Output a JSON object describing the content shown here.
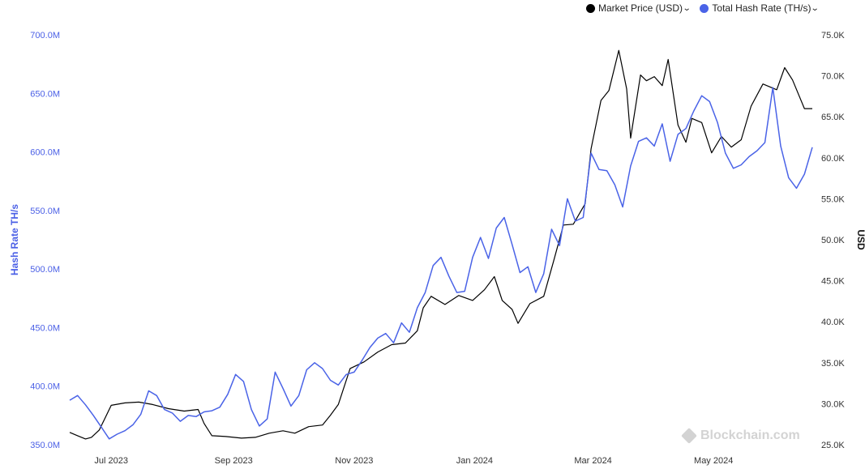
{
  "legend": [
    {
      "label": "Market Price (USD)",
      "color": "#000000"
    },
    {
      "label": "Total Hash Rate (TH/s)",
      "color": "#4a63e7"
    }
  ],
  "watermark": "Blockchain.com",
  "chart_data": {
    "type": "line",
    "title": "",
    "ylabel_left": "Hash Rate TH/s",
    "ylabel_right": "USD",
    "grid": false,
    "legend_position": "top-right",
    "left_axis": {
      "ticks": [
        "350.0M",
        "400.0M",
        "450.0M",
        "500.0M",
        "550.0M",
        "600.0M",
        "650.0M",
        "700.0M"
      ],
      "range": [
        350,
        700
      ],
      "unit": "M TH/s"
    },
    "right_axis": {
      "ticks": [
        "25.0K",
        "30.0K",
        "35.0K",
        "40.0K",
        "45.0K",
        "50.0K",
        "55.0K",
        "60.0K",
        "65.0K",
        "70.0K",
        "75.0K"
      ],
      "range": [
        25,
        75
      ],
      "unit": "K USD"
    },
    "x_axis": {
      "ticks": [
        "Jul 2023",
        "Sep 2023",
        "Nov 2023",
        "Jan 2024",
        "Mar 2024",
        "May 2024"
      ],
      "range": [
        "2023-06-10",
        "2024-06-20"
      ]
    },
    "series": [
      {
        "name": "Market Price (USD)",
        "axis": "right",
        "color": "#000000",
        "x": [
          "2023-06-10",
          "2023-06-14",
          "2023-06-18",
          "2023-06-21",
          "2023-06-25",
          "2023-07-01",
          "2023-07-08",
          "2023-07-15",
          "2023-07-22",
          "2023-07-30",
          "2023-08-07",
          "2023-08-14",
          "2023-08-17",
          "2023-08-21",
          "2023-08-28",
          "2023-09-05",
          "2023-09-12",
          "2023-09-19",
          "2023-09-26",
          "2023-10-02",
          "2023-10-09",
          "2023-10-16",
          "2023-10-20",
          "2023-10-24",
          "2023-10-30",
          "2023-11-06",
          "2023-11-13",
          "2023-11-20",
          "2023-11-27",
          "2023-12-03",
          "2023-12-06",
          "2023-12-10",
          "2023-12-17",
          "2023-12-24",
          "2023-12-31",
          "2024-01-06",
          "2024-01-11",
          "2024-01-15",
          "2024-01-20",
          "2024-01-23",
          "2024-01-29",
          "2024-02-05",
          "2024-02-10",
          "2024-02-15",
          "2024-02-20",
          "2024-02-26",
          "2024-02-29",
          "2024-03-05",
          "2024-03-09",
          "2024-03-14",
          "2024-03-18",
          "2024-03-20",
          "2024-03-25",
          "2024-03-28",
          "2024-04-01",
          "2024-04-05",
          "2024-04-08",
          "2024-04-13",
          "2024-04-17",
          "2024-04-20",
          "2024-04-25",
          "2024-04-30",
          "2024-05-05",
          "2024-05-10",
          "2024-05-15",
          "2024-05-20",
          "2024-05-26",
          "2024-06-02",
          "2024-06-06",
          "2024-06-10",
          "2024-06-16",
          "2024-06-20"
        ],
        "values": [
          26.5,
          26.1,
          25.7,
          25.9,
          26.8,
          29.8,
          30.1,
          30.2,
          29.9,
          29.4,
          29.1,
          29.3,
          27.6,
          26.1,
          26.0,
          25.8,
          25.9,
          26.4,
          26.7,
          26.4,
          27.2,
          27.4,
          28.6,
          29.9,
          34.3,
          35.1,
          36.3,
          37.2,
          37.4,
          38.9,
          41.7,
          43.1,
          42.1,
          43.2,
          42.6,
          43.9,
          45.5,
          42.6,
          41.5,
          39.8,
          42.2,
          43.1,
          47.4,
          51.8,
          51.9,
          54.4,
          61.1,
          67.0,
          68.2,
          73.1,
          68.4,
          62.4,
          70.1,
          69.4,
          69.9,
          68.8,
          72.0,
          64.0,
          61.9,
          64.8,
          64.3,
          60.6,
          62.6,
          61.3,
          62.2,
          66.3,
          69.0,
          68.3,
          71.0,
          69.5,
          66.0,
          66.0
        ],
        "note_values": "K USD"
      },
      {
        "name": "Total Hash Rate (TH/s)",
        "axis": "left",
        "color": "#4a63e7",
        "x": [
          "2023-06-10",
          "2023-06-14",
          "2023-06-18",
          "2023-06-22",
          "2023-06-26",
          "2023-06-30",
          "2023-07-04",
          "2023-07-08",
          "2023-07-12",
          "2023-07-16",
          "2023-07-20",
          "2023-07-24",
          "2023-07-28",
          "2023-08-01",
          "2023-08-05",
          "2023-08-09",
          "2023-08-13",
          "2023-08-17",
          "2023-08-21",
          "2023-08-25",
          "2023-08-29",
          "2023-09-02",
          "2023-09-06",
          "2023-09-10",
          "2023-09-14",
          "2023-09-18",
          "2023-09-22",
          "2023-09-26",
          "2023-09-30",
          "2023-10-04",
          "2023-10-08",
          "2023-10-12",
          "2023-10-16",
          "2023-10-20",
          "2023-10-24",
          "2023-10-28",
          "2023-11-01",
          "2023-11-05",
          "2023-11-09",
          "2023-11-13",
          "2023-11-17",
          "2023-11-21",
          "2023-11-25",
          "2023-11-29",
          "2023-12-03",
          "2023-12-07",
          "2023-12-11",
          "2023-12-15",
          "2023-12-19",
          "2023-12-23",
          "2023-12-27",
          "2023-12-31",
          "2024-01-04",
          "2024-01-08",
          "2024-01-12",
          "2024-01-16",
          "2024-01-20",
          "2024-01-24",
          "2024-01-28",
          "2024-02-01",
          "2024-02-05",
          "2024-02-09",
          "2024-02-13",
          "2024-02-17",
          "2024-02-21",
          "2024-02-25",
          "2024-02-29",
          "2024-03-04",
          "2024-03-08",
          "2024-03-12",
          "2024-03-16",
          "2024-03-20",
          "2024-03-24",
          "2024-03-28",
          "2024-04-01",
          "2024-04-05",
          "2024-04-09",
          "2024-04-13",
          "2024-04-17",
          "2024-04-21",
          "2024-04-25",
          "2024-04-29",
          "2024-05-03",
          "2024-05-07",
          "2024-05-11",
          "2024-05-15",
          "2024-05-19",
          "2024-05-23",
          "2024-05-27",
          "2024-05-31",
          "2024-06-04",
          "2024-06-08",
          "2024-06-12",
          "2024-06-16",
          "2024-06-20"
        ],
        "values": [
          388,
          392,
          384,
          375,
          365,
          355,
          359,
          362,
          367,
          376,
          396,
          392,
          380,
          377,
          370,
          375,
          374,
          378,
          379,
          382,
          393,
          410,
          404,
          380,
          366,
          372,
          412,
          398,
          383,
          392,
          414,
          420,
          415,
          405,
          401,
          410,
          412,
          422,
          433,
          441,
          445,
          437,
          454,
          446,
          467,
          480,
          503,
          510,
          494,
          480,
          481,
          510,
          527,
          509,
          535,
          544,
          521,
          497,
          502,
          480,
          496,
          534,
          520,
          560,
          541,
          544,
          599,
          585,
          584,
          572,
          553,
          588,
          609,
          612,
          605,
          624,
          592,
          615,
          620,
          635,
          648,
          643,
          625,
          599,
          586,
          589,
          596,
          601,
          608,
          655,
          605,
          578,
          569,
          581,
          604
        ],
        "note_values": "M TH/s"
      }
    ]
  }
}
